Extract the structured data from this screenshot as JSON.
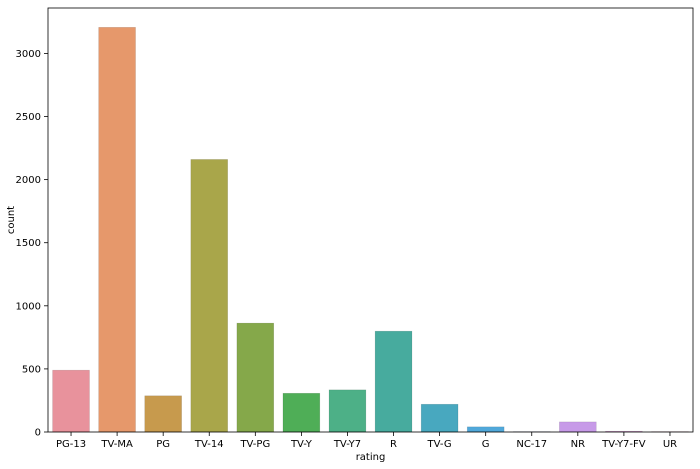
{
  "chart_data": {
    "type": "bar",
    "categories": [
      "PG-13",
      "TV-MA",
      "PG",
      "TV-14",
      "TV-PG",
      "TV-Y",
      "TV-Y7",
      "R",
      "TV-G",
      "G",
      "NC-17",
      "NR",
      "TV-Y7-FV",
      "UR"
    ],
    "values": [
      490,
      3207,
      287,
      2160,
      863,
      307,
      334,
      799,
      220,
      41,
      3,
      80,
      6,
      3
    ],
    "colors": [
      "#e8929c",
      "#e6986b",
      "#c79a4d",
      "#a9a64a",
      "#85a84a",
      "#4fae57",
      "#4db087",
      "#47ab9e",
      "#48a8bf",
      "#50a8da",
      "#9aa9e8",
      "#c79ae8",
      "#e38ed8",
      "#ec8fb8"
    ],
    "title": "",
    "xlabel": "rating",
    "ylabel": "count",
    "ylim": [
      0,
      3360
    ],
    "yticks": [
      0,
      500,
      1000,
      1500,
      2000,
      2500,
      3000
    ],
    "grid": false
  }
}
